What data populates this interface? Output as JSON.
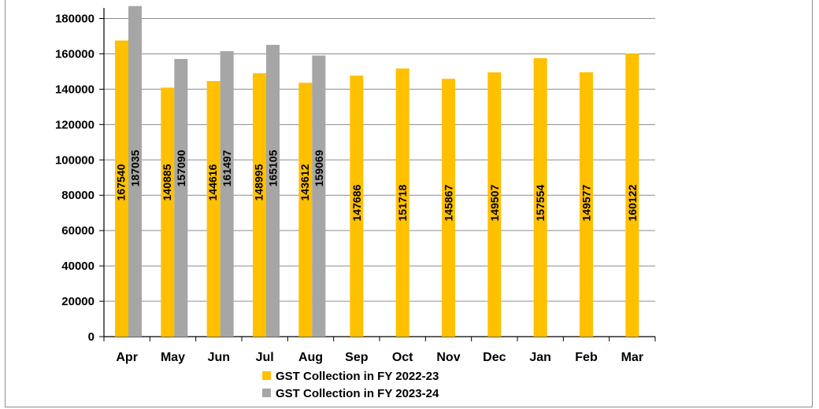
{
  "chart_data": {
    "type": "bar",
    "title": "",
    "xlabel": "",
    "ylabel": "",
    "categories": [
      "Apr",
      "May",
      "Jun",
      "Jul",
      "Aug",
      "Sep",
      "Oct",
      "Nov",
      "Dec",
      "Jan",
      "Feb",
      "Mar"
    ],
    "series": [
      {
        "name": "GST Collection in FY 2022-23",
        "color": "#ffc000",
        "values": [
          167540,
          140885,
          144616,
          148995,
          143612,
          147686,
          151718,
          145867,
          149507,
          157554,
          149577,
          160122
        ]
      },
      {
        "name": "GST Collection in FY 2023-24",
        "color": "#a6a6a6",
        "values": [
          187035,
          157090,
          161497,
          165105,
          159069,
          null,
          null,
          null,
          null,
          null,
          null,
          null
        ]
      }
    ],
    "ylim": [
      0,
      180000
    ],
    "yticks": [
      0,
      20000,
      40000,
      60000,
      80000,
      100000,
      120000,
      140000,
      160000,
      180000
    ],
    "grid": true,
    "legend_position": "bottom",
    "data_labels": true
  }
}
